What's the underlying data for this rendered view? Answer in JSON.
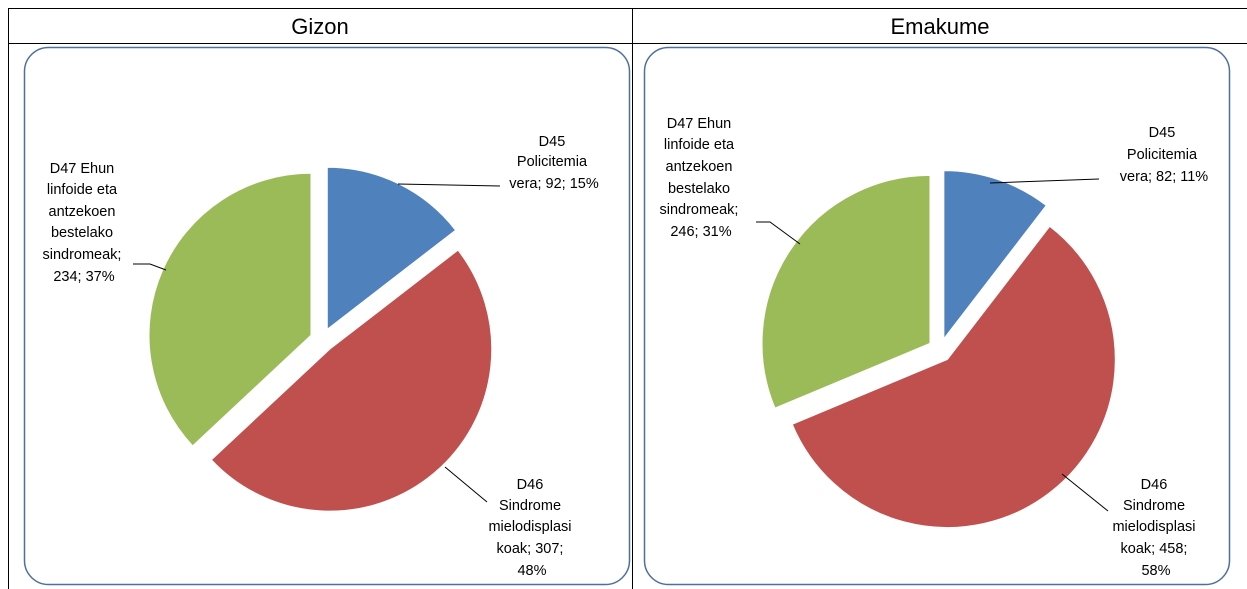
{
  "table": {
    "headers": [
      "Gizon",
      "Emakume"
    ]
  },
  "colors": {
    "d45": "#4F81BD",
    "d46": "#C0504D",
    "d47": "#9BBB59",
    "frame": "#4F6FA0",
    "border": "#000000"
  },
  "chart_data": [
    {
      "type": "pie",
      "panel": "Gizon",
      "title": "",
      "categories": [
        "D45 Policitemia vera",
        "D46 Sindrome mielodisplasikoak",
        "D47 Ehun linfoide eta antzekoen bestelako sindromeak"
      ],
      "values": [
        92,
        307,
        234
      ],
      "percent": [
        15,
        48,
        37
      ],
      "exploded": true,
      "labels": [
        [
          "D45",
          "Policitemia",
          "vera; 92; 15%"
        ],
        [
          "D46",
          "Sindrome",
          "mielodisplasi",
          "koak; 307;",
          "48%"
        ],
        [
          "D47 Ehun",
          "linfoide eta",
          "antzekoen",
          "bestelako",
          "sindromeak;",
          "234; 37%"
        ]
      ]
    },
    {
      "type": "pie",
      "panel": "Emakume",
      "title": "",
      "categories": [
        "D45 Policitemia vera",
        "D46 Sindrome mielodisplasikoak",
        "D47 Ehun linfoide eta antzekoen bestelako sindromeak"
      ],
      "values": [
        82,
        458,
        246
      ],
      "percent": [
        11,
        58,
        31
      ],
      "exploded": true,
      "labels": [
        [
          "D45",
          "Policitemia",
          "vera; 82; 11%"
        ],
        [
          "D46",
          "Sindrome",
          "mielodisplasi",
          "koak; 458;",
          "58%"
        ],
        [
          "D47 Ehun",
          "linfoide eta",
          "antzekoen",
          "bestelako",
          "sindromeak;",
          "246; 31%"
        ]
      ]
    }
  ]
}
